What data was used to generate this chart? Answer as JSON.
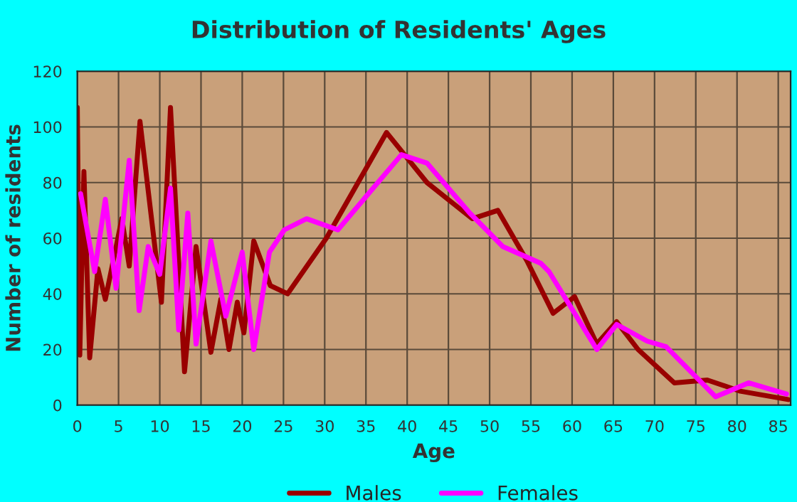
{
  "chart_data": {
    "type": "line",
    "title": "Distribution of Residents' Ages",
    "xlabel": "Age",
    "ylabel": "Number of residents",
    "xlim": [
      0,
      86.5
    ],
    "xticks": [
      0,
      5,
      10,
      15,
      20,
      25,
      30,
      35,
      40,
      45,
      50,
      55,
      60,
      65,
      70,
      75,
      80,
      85
    ],
    "ylim": [
      0,
      120
    ],
    "yticks": [
      0,
      20,
      40,
      60,
      80,
      100,
      120
    ],
    "grid": true,
    "legend": "bottom",
    "line_style": "solid",
    "marker": "none",
    "series": [
      {
        "name": "Males",
        "color": "#990000",
        "x": [
          0,
          0.3,
          0.8,
          1.5,
          2.5,
          3.4,
          5.4,
          6.3,
          7.6,
          10.2,
          11.3,
          13,
          14.4,
          16.2,
          17.4,
          18.4,
          19.4,
          20.2,
          21.4,
          23.4,
          25.5,
          30.2,
          37.5,
          42.4,
          47.9,
          51,
          54.5,
          57.7,
          60.3,
          63,
          65.4,
          68,
          72.4,
          76.4,
          80.4,
          86.2
        ],
        "values": [
          107,
          18,
          84,
          17,
          49,
          38,
          67,
          50,
          102,
          37,
          107,
          12,
          57,
          19,
          38,
          20,
          37,
          26,
          59,
          43,
          40,
          60,
          98,
          80,
          67,
          70,
          52,
          33,
          39,
          22,
          30,
          20,
          8,
          9,
          5,
          2
        ]
      },
      {
        "name": "Females",
        "color": "#ff00ff",
        "x": [
          0.4,
          2.1,
          3.4,
          4.7,
          6.3,
          7.5,
          8.6,
          10,
          11.3,
          12.3,
          13.4,
          14.4,
          16.2,
          18,
          20,
          21.4,
          23.3,
          25.1,
          27.8,
          31.6,
          39.3,
          42.4,
          47.6,
          51.6,
          53.9,
          56.2,
          57.2,
          63,
          65.4,
          69.1,
          71.4,
          77.4,
          81.4,
          86
        ],
        "values": [
          76,
          48,
          74,
          42,
          88,
          34,
          57,
          47,
          78,
          27,
          69,
          22,
          59,
          32,
          55,
          20,
          55,
          63,
          67,
          63,
          90,
          87,
          69,
          57,
          54,
          51,
          48,
          20,
          29,
          23,
          21,
          3,
          8,
          4
        ]
      }
    ]
  }
}
